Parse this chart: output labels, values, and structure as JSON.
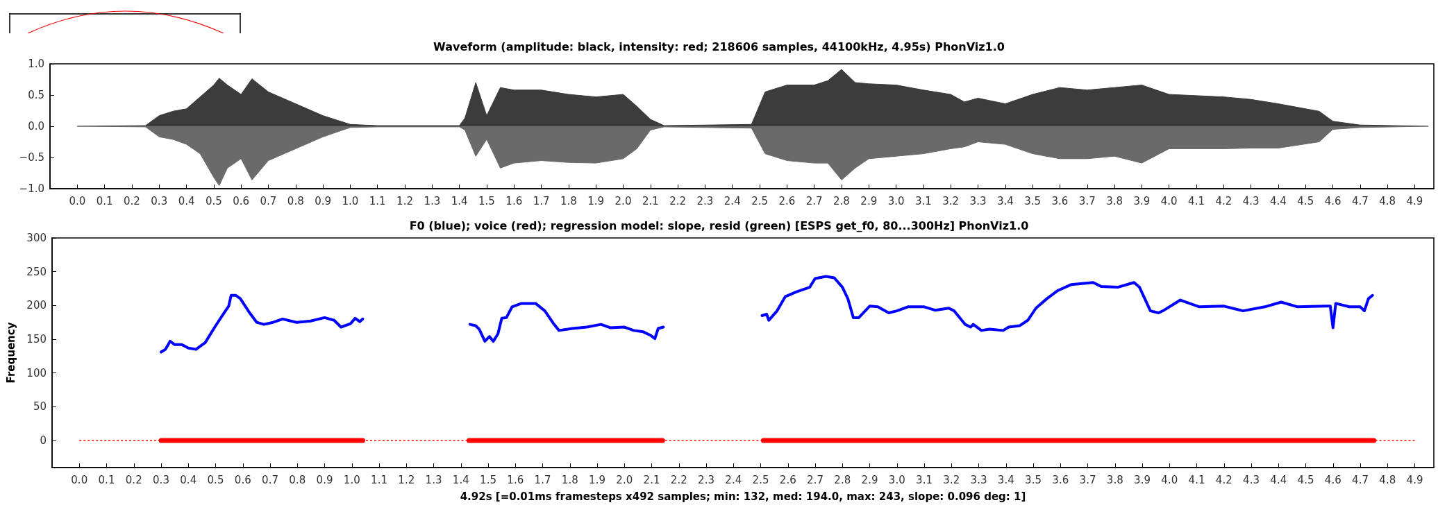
{
  "chart_data": [
    {
      "type": "area",
      "title": "Waveform (amplitude: black, intensity: red; 218606 samples, 44100kHz, 4.95s) PhonViz1.0",
      "x": [
        0,
        0.25,
        0.3,
        0.35,
        0.4,
        0.45,
        0.5,
        0.52,
        0.55,
        0.6,
        0.64,
        0.7,
        0.8,
        0.9,
        1.0,
        1.1,
        1.4,
        1.42,
        1.46,
        1.5,
        1.55,
        1.6,
        1.7,
        1.8,
        1.9,
        2.0,
        2.05,
        2.1,
        2.15,
        2.47,
        2.52,
        2.6,
        2.7,
        2.75,
        2.8,
        2.85,
        2.9,
        3.0,
        3.1,
        3.2,
        3.25,
        3.3,
        3.4,
        3.5,
        3.6,
        3.7,
        3.8,
        3.9,
        4.0,
        4.2,
        4.3,
        4.4,
        4.55,
        4.6,
        4.7,
        4.95
      ],
      "series": [
        {
          "color": "#3c3c3c",
          "values": [
            0,
            0.01,
            0.17,
            0.24,
            0.28,
            0.47,
            0.66,
            0.77,
            0.66,
            0.51,
            0.76,
            0.55,
            0.36,
            0.17,
            0.03,
            0.01,
            0.01,
            0.13,
            0.7,
            0.17,
            0.62,
            0.58,
            0.58,
            0.51,
            0.47,
            0.51,
            0.32,
            0.11,
            0.01,
            0.03,
            0.55,
            0.66,
            0.66,
            0.73,
            0.91,
            0.7,
            0.68,
            0.66,
            0.58,
            0.51,
            0.39,
            0.45,
            0.36,
            0.51,
            0.62,
            0.58,
            0.62,
            0.66,
            0.51,
            0.47,
            0.43,
            0.36,
            0.24,
            0.08,
            0.02,
            0
          ]
        },
        {
          "color": "#6a6a6a",
          "values": [
            0,
            -0.01,
            -0.17,
            -0.21,
            -0.29,
            -0.44,
            -0.82,
            -0.95,
            -0.67,
            -0.52,
            -0.86,
            -0.55,
            -0.36,
            -0.17,
            -0.02,
            -0.01,
            -0.01,
            -0.06,
            -0.48,
            -0.21,
            -0.67,
            -0.59,
            -0.55,
            -0.58,
            -0.59,
            -0.52,
            -0.36,
            -0.06,
            -0.01,
            -0.03,
            -0.44,
            -0.55,
            -0.59,
            -0.59,
            -0.86,
            -0.67,
            -0.52,
            -0.48,
            -0.44,
            -0.36,
            -0.33,
            -0.25,
            -0.29,
            -0.44,
            -0.52,
            -0.52,
            -0.48,
            -0.59,
            -0.36,
            -0.36,
            -0.35,
            -0.35,
            -0.25,
            -0.05,
            -0.02,
            0
          ]
        }
      ],
      "xlim": [
        -0.1,
        4.97
      ],
      "ylim": [
        -1,
        1
      ],
      "yticks": [
        {
          "value": -1,
          "label": "−1.0"
        },
        {
          "value": -0.5,
          "label": "−0.5"
        },
        {
          "value": 0,
          "label": "0.0"
        },
        0.5,
        {
          "value": 1,
          "label": "1.0"
        }
      ],
      "xticks": [
        {
          "value": 0,
          "label": "0.0"
        },
        0.1,
        0.2,
        0.3,
        0.4,
        0.5,
        0.6,
        0.7,
        0.8,
        0.9,
        {
          "value": 1,
          "label": "1.0"
        },
        1.1,
        1.2,
        1.3,
        1.4,
        1.5,
        1.6,
        1.7,
        1.8,
        1.9,
        {
          "value": 2,
          "label": "2.0"
        },
        2.1,
        2.2,
        2.3,
        2.4,
        2.5,
        2.6,
        2.7,
        2.8,
        2.9,
        {
          "value": 3,
          "label": "3.0"
        },
        3.1,
        3.2,
        3.3,
        3.4,
        3.5,
        3.6,
        3.7,
        3.8,
        3.9,
        {
          "value": 4,
          "label": "4.0"
        },
        4.1,
        4.2,
        4.3,
        4.4,
        4.5,
        4.6,
        4.7,
        4.8,
        4.9
      ]
    },
    {
      "type": "line",
      "title": "F0 (blue); voice (red); regression model: slope, resid (green) [ESPS get_f0, 80...300Hz] PhonViz1.0",
      "xlabel": "4.92s [=0.01ms framesteps x492 samples; min: 132, med: 194.0, max: 243, slope: 0.096 deg: 1]",
      "ylabel": "Frequency",
      "series": [
        {
          "color": "#ff0000",
          "line_style": "dotted",
          "x": [
            0,
            4.9
          ],
          "values": [
            0,
            0
          ]
        },
        {
          "color": "#ff0000",
          "x": [
            0.3,
            1.04,
            1.2,
            1.43,
            2.14,
            2.3,
            2.51,
            4.75
          ],
          "values": [
            0,
            0,
            null,
            0,
            0,
            null,
            0,
            0
          ]
        },
        {
          "color": "#0000ff",
          "x": [
            0.3,
            0.316,
            0.333,
            0.35,
            0.376,
            0.4,
            0.428,
            0.462,
            0.497,
            0.531,
            0.548,
            0.557,
            0.574,
            0.591,
            0.625,
            0.651,
            0.677,
            0.711,
            0.746,
            0.797,
            0.849,
            0.9,
            0.935,
            0.96,
            0.995,
            1.012,
            1.029,
            1.04,
            1.2,
            1.433,
            1.454,
            1.467,
            1.488,
            1.505,
            1.519,
            1.536,
            1.55,
            1.567,
            1.588,
            1.622,
            1.674,
            1.708,
            1.742,
            1.76,
            1.81,
            1.862,
            1.914,
            1.948,
            2.0,
            2.034,
            2.069,
            2.095,
            2.112,
            2.124,
            2.143,
            2.3,
            2.505,
            2.522,
            2.53,
            2.56,
            2.59,
            2.63,
            2.68,
            2.7,
            2.74,
            2.77,
            2.8,
            2.82,
            2.84,
            2.86,
            2.9,
            2.93,
            2.97,
            3.0,
            3.04,
            3.1,
            3.14,
            3.19,
            3.21,
            3.25,
            3.27,
            3.28,
            3.31,
            3.34,
            3.39,
            3.41,
            3.45,
            3.48,
            3.51,
            3.55,
            3.59,
            3.64,
            3.72,
            3.75,
            3.81,
            3.87,
            3.89,
            3.93,
            3.96,
            3.98,
            4.04,
            4.11,
            4.2,
            4.27,
            4.35,
            4.41,
            4.47,
            4.575,
            4.59,
            4.6,
            4.61,
            4.66,
            4.7,
            4.715,
            4.73,
            4.745
          ],
          "values": [
            131,
            135,
            147,
            142,
            142,
            137,
            135,
            145,
            168,
            189,
            199,
            215,
            215,
            210,
            189,
            175,
            172,
            175,
            180,
            175,
            177,
            182,
            178,
            168,
            173,
            181,
            176,
            180,
            null,
            172,
            170,
            165,
            147,
            154,
            147,
            158,
            181,
            182,
            198,
            203,
            203,
            192,
            172,
            163,
            166,
            168,
            172,
            167,
            168,
            163,
            161,
            156,
            151,
            166,
            168,
            null,
            185,
            187,
            178,
            192,
            213,
            220,
            227,
            240,
            243,
            241,
            227,
            210,
            182,
            182,
            199,
            198,
            189,
            192,
            198,
            198,
            193,
            196,
            192,
            172,
            168,
            172,
            163,
            165,
            163,
            168,
            170,
            178,
            196,
            210,
            222,
            231,
            234,
            228,
            227,
            234,
            227,
            192,
            189,
            193,
            208,
            198,
            199,
            192,
            198,
            205,
            198,
            199,
            199,
            167,
            203,
            198,
            198,
            192,
            210,
            215
          ]
        }
      ],
      "xlim": [
        -0.1,
        4.97
      ],
      "ylim": [
        -40,
        300
      ],
      "yticks": [
        0,
        50,
        100,
        150,
        200,
        250,
        300
      ],
      "xticks": [
        {
          "value": 0,
          "label": "0.0"
        },
        0.1,
        0.2,
        0.3,
        0.4,
        0.5,
        0.6,
        0.7,
        0.8,
        0.9,
        {
          "value": 1,
          "label": "1.0"
        },
        1.1,
        1.2,
        1.3,
        1.4,
        1.5,
        1.6,
        1.7,
        1.8,
        1.9,
        {
          "value": 2,
          "label": "2.0"
        },
        2.1,
        2.2,
        2.3,
        2.4,
        2.5,
        2.6,
        2.7,
        2.8,
        2.9,
        {
          "value": 3,
          "label": "3.0"
        },
        3.1,
        3.2,
        3.3,
        3.4,
        3.5,
        3.6,
        3.7,
        3.8,
        3.9,
        {
          "value": 4,
          "label": "4.0"
        },
        4.1,
        4.2,
        4.3,
        4.4,
        4.5,
        4.6,
        4.7,
        4.8,
        4.9
      ]
    }
  ]
}
